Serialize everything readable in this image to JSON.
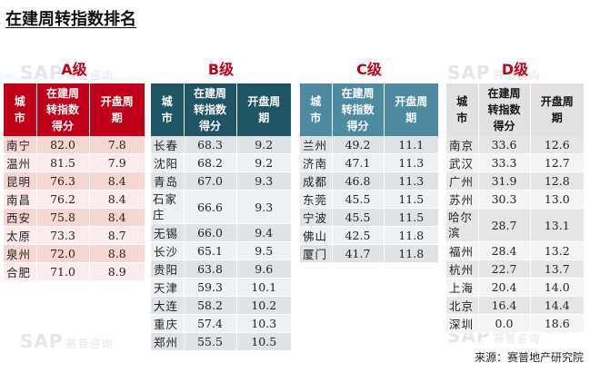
{
  "title": "在建周转指数排名",
  "watermark": {
    "brand": "SAP",
    "text": "赛普咨询"
  },
  "headers": {
    "city": "城市",
    "score": "在建周转指数得分",
    "cycle": "开盘周期"
  },
  "source": "来源：赛普地产研究院",
  "colors": {
    "A": "#c00018",
    "B": "#205565",
    "C": "#4d8aa0",
    "D": "#e1e1e1",
    "rowA1": "#f6d6d2",
    "rowA2": "#fbeceb",
    "rowBC1": "#dde3e6",
    "rowBC2": "#eef1f3",
    "rowD1": "#e6e6e6",
    "rowD2": "#f4f4f4"
  },
  "tables": [
    {
      "grade": "A级",
      "rows": [
        {
          "city": "南宁",
          "score": "82.0",
          "cycle": "7.8"
        },
        {
          "city": "温州",
          "score": "81.5",
          "cycle": "7.9"
        },
        {
          "city": "昆明",
          "score": "76.3",
          "cycle": "8.4"
        },
        {
          "city": "南昌",
          "score": "76.2",
          "cycle": "8.4"
        },
        {
          "city": "西安",
          "score": "75.8",
          "cycle": "8.4"
        },
        {
          "city": "太原",
          "score": "73.3",
          "cycle": "8.7"
        },
        {
          "city": "泉州",
          "score": "72.0",
          "cycle": "8.8"
        },
        {
          "city": "合肥",
          "score": "71.0",
          "cycle": "8.9"
        }
      ]
    },
    {
      "grade": "B级",
      "rows": [
        {
          "city": "长春",
          "score": "68.3",
          "cycle": "9.2"
        },
        {
          "city": "沈阳",
          "score": "68.2",
          "cycle": "9.2"
        },
        {
          "city": "青岛",
          "score": "67.0",
          "cycle": "9.3"
        },
        {
          "city": "石家庄",
          "score": "66.6",
          "cycle": "9.3"
        },
        {
          "city": "无锡",
          "score": "66.0",
          "cycle": "9.4"
        },
        {
          "city": "长沙",
          "score": "65.1",
          "cycle": "9.5"
        },
        {
          "city": "贵阳",
          "score": "63.8",
          "cycle": "9.6"
        },
        {
          "city": "天津",
          "score": "59.3",
          "cycle": "10.1"
        },
        {
          "city": "大连",
          "score": "58.2",
          "cycle": "10.2"
        },
        {
          "city": "重庆",
          "score": "57.4",
          "cycle": "10.3"
        },
        {
          "city": "郑州",
          "score": "55.5",
          "cycle": "10.5"
        }
      ]
    },
    {
      "grade": "C级",
      "rows": [
        {
          "city": "兰州",
          "score": "49.2",
          "cycle": "11.1"
        },
        {
          "city": "济南",
          "score": "47.1",
          "cycle": "11.3"
        },
        {
          "city": "成都",
          "score": "46.8",
          "cycle": "11.3"
        },
        {
          "city": "东莞",
          "score": "45.5",
          "cycle": "11.5"
        },
        {
          "city": "宁波",
          "score": "45.5",
          "cycle": "11.5"
        },
        {
          "city": "佛山",
          "score": "42.5",
          "cycle": "11.8"
        },
        {
          "city": "厦门",
          "score": "41.7",
          "cycle": "11.8"
        }
      ]
    },
    {
      "grade": "D级",
      "rows": [
        {
          "city": "南京",
          "score": "33.6",
          "cycle": "12.6"
        },
        {
          "city": "武汉",
          "score": "33.3",
          "cycle": "12.7"
        },
        {
          "city": "广州",
          "score": "31.9",
          "cycle": "12.8"
        },
        {
          "city": "苏州",
          "score": "30.3",
          "cycle": "13.0"
        },
        {
          "city": "哈尔滨",
          "score": "28.7",
          "cycle": "13.1"
        },
        {
          "city": "福州",
          "score": "28.4",
          "cycle": "13.2"
        },
        {
          "city": "杭州",
          "score": "22.7",
          "cycle": "13.7"
        },
        {
          "city": "上海",
          "score": "20.4",
          "cycle": "14.0"
        },
        {
          "city": "北京",
          "score": "16.4",
          "cycle": "14.4"
        },
        {
          "city": "深圳",
          "score": "0.0",
          "cycle": "18.6"
        }
      ]
    }
  ]
}
